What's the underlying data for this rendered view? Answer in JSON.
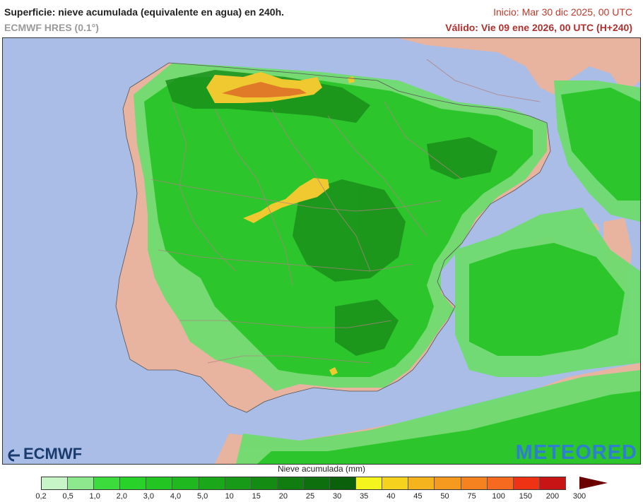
{
  "header": {
    "title": "Superficie: nieve acumulada (equivalente en agua) en 240h.",
    "model": "ECMWF HRES (0.1°)",
    "init": "Inicio: Mar 30 dic 2025, 00 UTC",
    "valid": "Válido: Vie 09 ene 2026, 00 UTC (H+240)"
  },
  "logos": {
    "left": "ECMWF",
    "right": "METEORED"
  },
  "legend": {
    "title": "Nieve acumulada (mm)",
    "ticks": [
      "0,2",
      "0,5",
      "1,0",
      "2,0",
      "3,0",
      "4,0",
      "5,0",
      "10",
      "15",
      "20",
      "25",
      "30",
      "35",
      "40",
      "45",
      "50",
      "75",
      "100",
      "150",
      "200",
      "300"
    ],
    "colors": [
      "#c8f5c8",
      "#8ee88e",
      "#3ddc3d",
      "#28d228",
      "#22c522",
      "#1fb91f",
      "#1aa81a",
      "#179a17",
      "#148c14",
      "#117d11",
      "#0e6f0e",
      "#0b600b",
      "#f5f51e",
      "#f5d21e",
      "#f5b41e",
      "#f59a1e",
      "#f5821e",
      "#f56a1e",
      "#f03214",
      "#c81414",
      "#8c0000"
    ]
  },
  "map_colors": {
    "sea": "#a9bde6",
    "land": "#e8b4a0",
    "snow_light": "#6fdc6f",
    "snow_mid": "#2cc52c",
    "snow_dark": "#1a8f1a",
    "snow_high": "#f0c830",
    "snow_peak": "#e07a28"
  }
}
